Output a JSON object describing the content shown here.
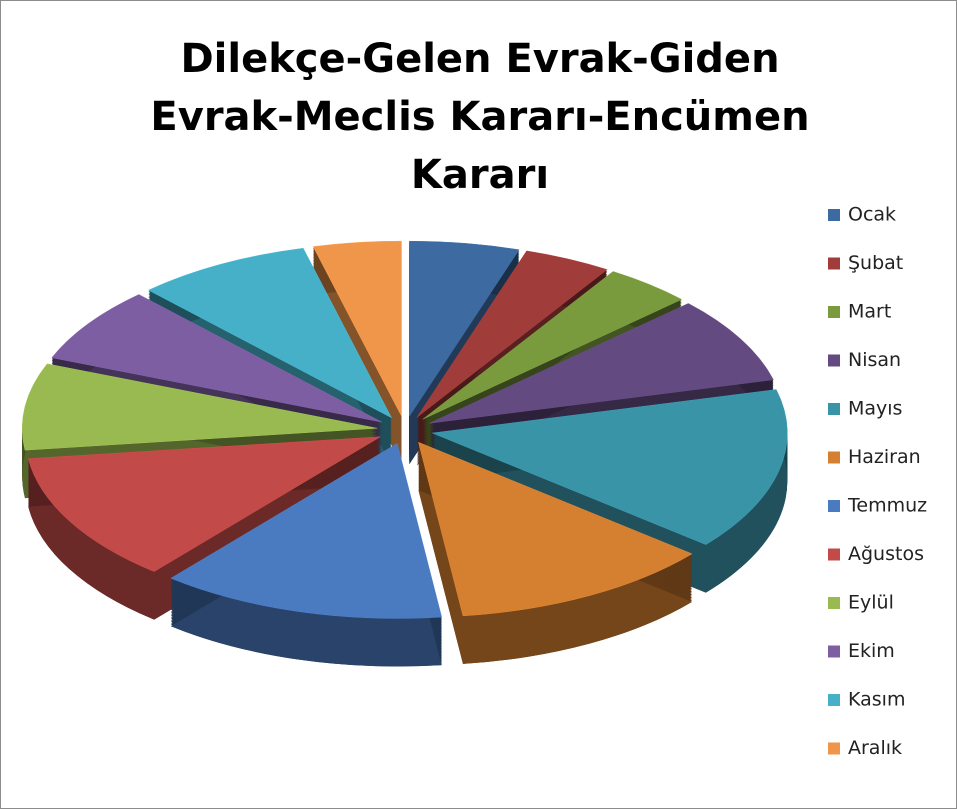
{
  "chart_data": {
    "type": "pie",
    "title": "Dilekçe-Gelen Evrak-Giden Evrak-Meclis Kararı-Encümen Kararı",
    "categories": [
      "Ocak",
      "Şubat",
      "Mart",
      "Nisan",
      "Mayıs",
      "Haziran",
      "Temmuz",
      "Ağustos",
      "Eylül",
      "Ekim",
      "Kasım",
      "Aralık"
    ],
    "values": [
      5,
      4,
      4,
      8,
      15,
      12,
      13,
      12,
      8,
      7,
      8,
      4
    ],
    "colors": [
      "#3d6aa0",
      "#a03c3a",
      "#7a9a3e",
      "#634a80",
      "#3a94a8",
      "#d57f30",
      "#4a7ac0",
      "#c24a48",
      "#98ba50",
      "#7d5ea2",
      "#45b0c8",
      "#f0964a"
    ],
    "legend": "right"
  }
}
